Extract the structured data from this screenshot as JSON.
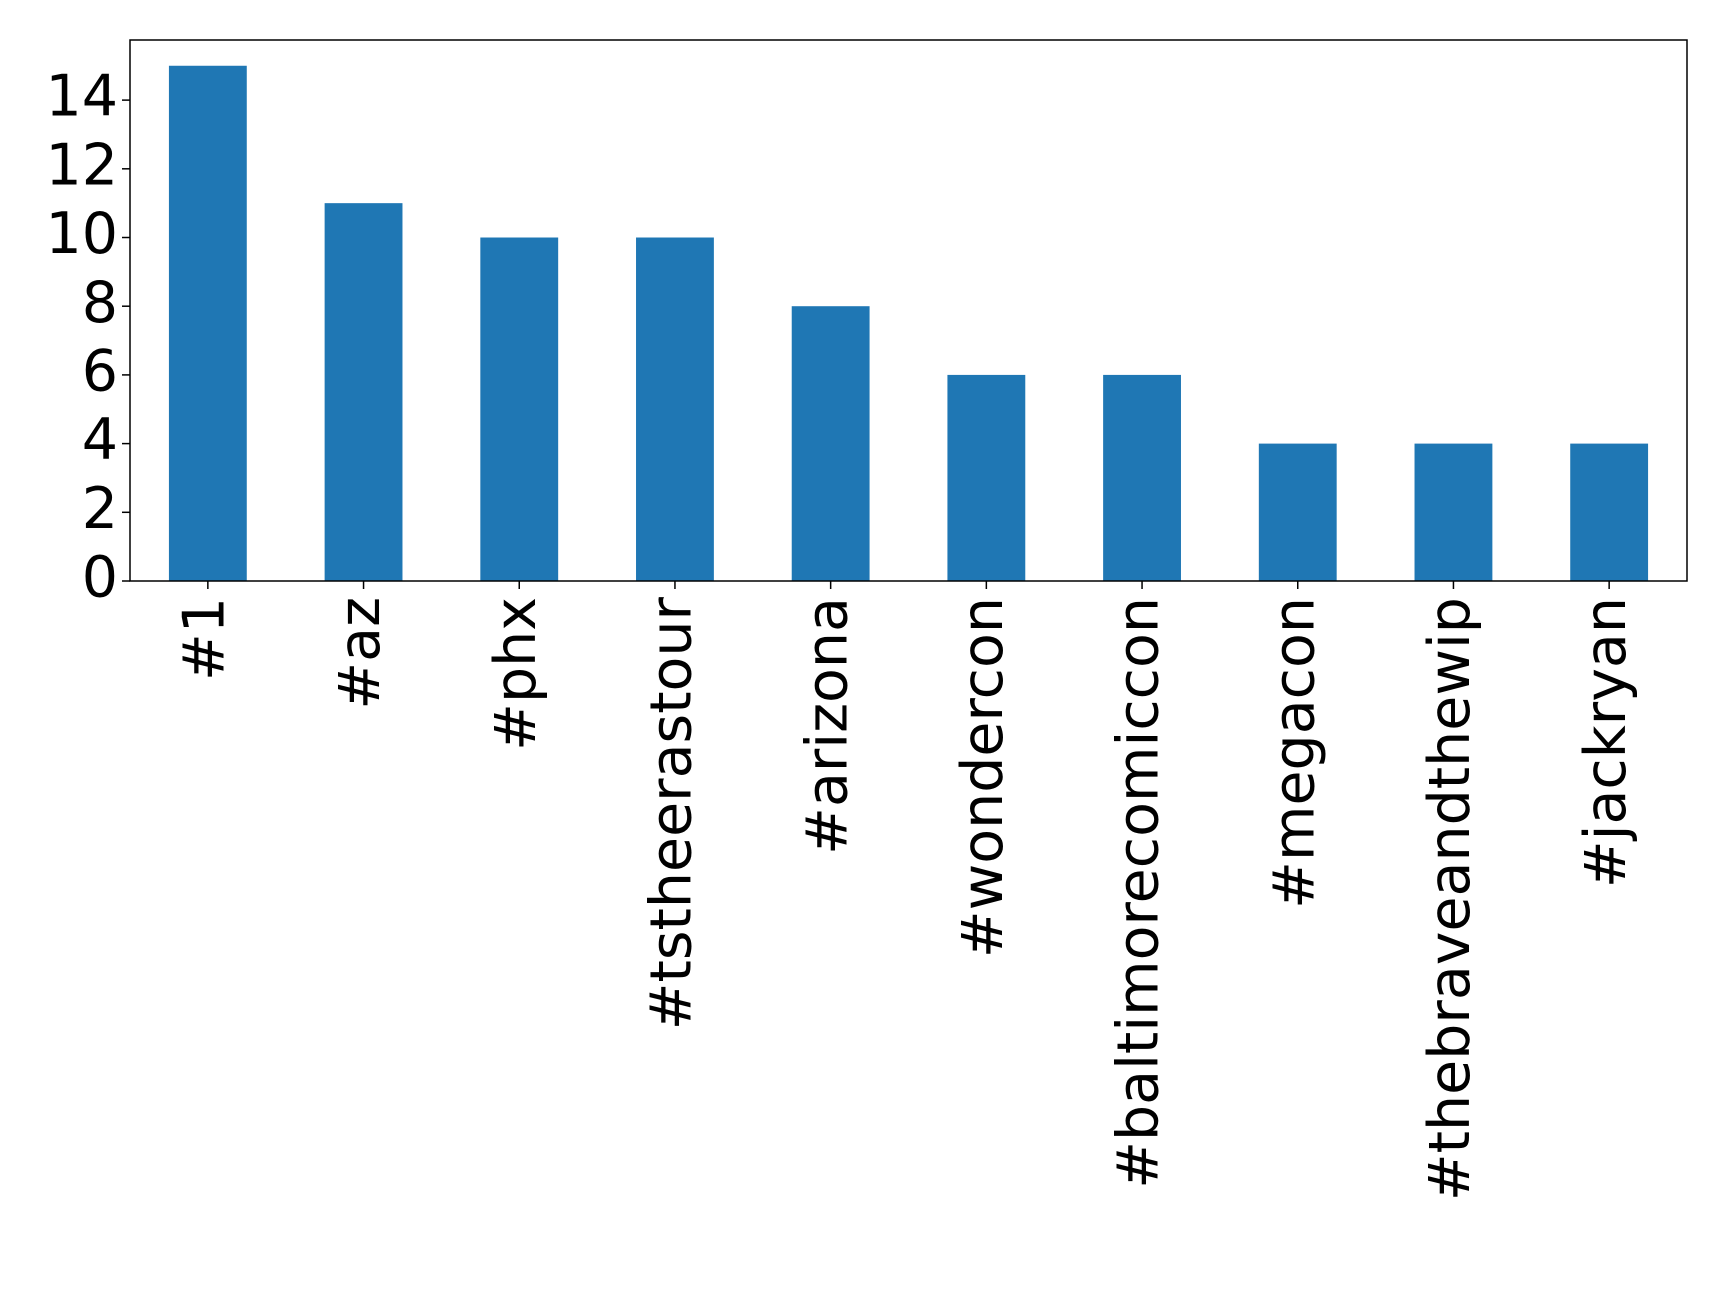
{
  "chart_data": {
    "type": "bar",
    "categories": [
      "#1",
      "#az",
      "#phx",
      "#tstheerastour",
      "#arizona",
      "#wondercon",
      "#baltimorecomiccon",
      "#megacon",
      "#thebraveandthewip",
      "#jackryan"
    ],
    "values": [
      15,
      11,
      10,
      10,
      8,
      6,
      6,
      4,
      4,
      4
    ],
    "color": "#1f77b4",
    "ylim": [
      0,
      15.75
    ],
    "yticks": [
      0,
      2,
      4,
      6,
      8,
      10,
      12,
      14
    ],
    "grid": false
  }
}
